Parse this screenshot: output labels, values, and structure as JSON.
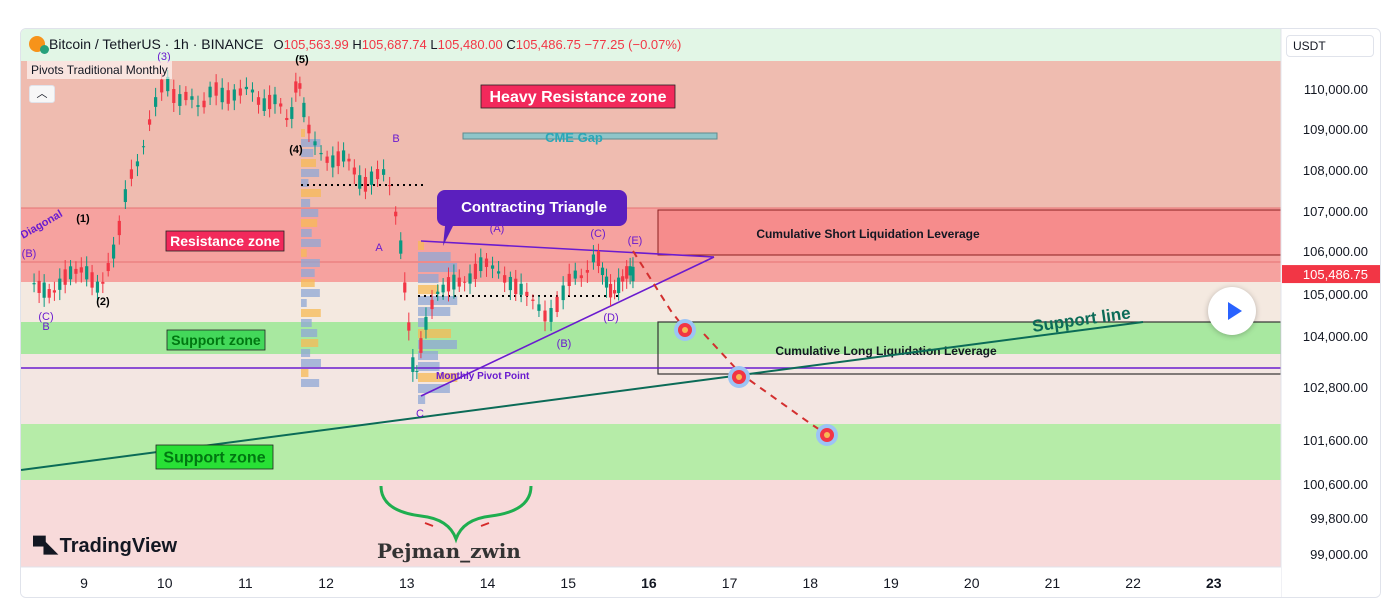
{
  "header": {
    "symbol": "Bitcoin / TetherUS · 1h · BINANCE",
    "open_label": "O",
    "open": "105,563.99",
    "high_label": "H",
    "high": "105,687.74",
    "low_label": "L",
    "low": "105,480.00",
    "close_label": "C",
    "close": "105,486.75",
    "change": "−77.25 (−0.07%)"
  },
  "indicator_label": "Pivots Traditional Monthly",
  "collapse_icon": "chevron-up-icon",
  "currency_selector": "USDT",
  "branding": {
    "logo_text": "TradingView",
    "author": "Pejman_zwin"
  },
  "colors": {
    "resistance": "#f44336",
    "support": "#4caf50",
    "triangle": "#6a1bcf",
    "support_line": "#0b6b57",
    "projection": "#d32f2f",
    "price_tag": "#f23645"
  },
  "chart_data": {
    "type": "candlestick",
    "symbol": "BTCUSDT",
    "timeframe": "1h",
    "x_ticks": [
      "9",
      "10",
      "11",
      "12",
      "13",
      "14",
      "15",
      "16",
      "17",
      "18",
      "19",
      "20",
      "21",
      "22",
      "23"
    ],
    "x_ticks_bold": [
      "16",
      "23"
    ],
    "y_ticks": [
      "110,000.00",
      "109,000.00",
      "108,000.00",
      "107,000.00",
      "106,000.00",
      "105,000.00",
      "104,000.00",
      "102,800.00",
      "101,600.00",
      "100,600.00",
      "99,800.00",
      "99,000.00"
    ],
    "last_price": "105,486.75",
    "price_path": [
      [
        8.35,
        105.3
      ],
      [
        8.6,
        105.0
      ],
      [
        8.8,
        105.5
      ],
      [
        9.0,
        105.6
      ],
      [
        9.2,
        105.1
      ],
      [
        9.4,
        106.2
      ],
      [
        9.55,
        107.8
      ],
      [
        9.7,
        108.3
      ],
      [
        9.85,
        109.5
      ],
      [
        10.0,
        110.3
      ],
      [
        10.15,
        109.7
      ],
      [
        10.3,
        109.9
      ],
      [
        10.45,
        109.5
      ],
      [
        10.6,
        110.1
      ],
      [
        10.75,
        109.8
      ],
      [
        10.9,
        109.9
      ],
      [
        11.05,
        110.1
      ],
      [
        11.2,
        109.6
      ],
      [
        11.4,
        109.8
      ],
      [
        11.55,
        109.1
      ],
      [
        11.65,
        110.4
      ],
      [
        11.75,
        109.2
      ],
      [
        11.9,
        108.5
      ],
      [
        12.05,
        108.2
      ],
      [
        12.25,
        108.4
      ],
      [
        12.45,
        107.6
      ],
      [
        12.6,
        107.9
      ],
      [
        12.75,
        108.0
      ],
      [
        12.9,
        106.6
      ],
      [
        13.0,
        104.7
      ],
      [
        13.1,
        102.9
      ],
      [
        13.2,
        104.1
      ],
      [
        13.35,
        105.0
      ],
      [
        13.55,
        105.3
      ],
      [
        13.75,
        105.3
      ],
      [
        13.95,
        105.8
      ],
      [
        14.1,
        105.6
      ],
      [
        14.25,
        105.3
      ],
      [
        14.45,
        105.1
      ],
      [
        14.6,
        104.8
      ],
      [
        14.75,
        104.4
      ],
      [
        14.9,
        104.9
      ],
      [
        15.05,
        105.5
      ],
      [
        15.2,
        105.4
      ],
      [
        15.35,
        106.0
      ],
      [
        15.45,
        105.4
      ],
      [
        15.55,
        105.0
      ],
      [
        15.65,
        105.3
      ],
      [
        15.75,
        105.6
      ],
      [
        15.82,
        105.45
      ]
    ],
    "annotations": [
      {
        "text": "Heavy Resistance zone",
        "type": "zone-label"
      },
      {
        "text": "CME Gap",
        "type": "zone-label"
      },
      {
        "text": "Resistance zone",
        "type": "zone-label"
      },
      {
        "text": "Support zone",
        "type": "zone-label"
      },
      {
        "text": "Support zone",
        "type": "zone-label"
      },
      {
        "text": "Contracting Triangle",
        "type": "callout"
      },
      {
        "text": "Cumulative Short Liquidation Leverage",
        "type": "zone-label"
      },
      {
        "text": "Cumulative Long Liquidation Leverage",
        "type": "zone-label"
      },
      {
        "text": "Support line",
        "type": "trendline-label"
      },
      {
        "text": "Monthly Pivot Point",
        "type": "level-label"
      },
      {
        "text": "Diagonal",
        "type": "pattern-label"
      }
    ],
    "wave_labels": [
      "(1)",
      "(2)",
      "(3)",
      "(4)",
      "(5)",
      "(B)",
      "(C)",
      "B",
      "A",
      "B",
      "C",
      "(A)",
      "(B)",
      "(C)",
      "(D)",
      "(E)"
    ]
  }
}
